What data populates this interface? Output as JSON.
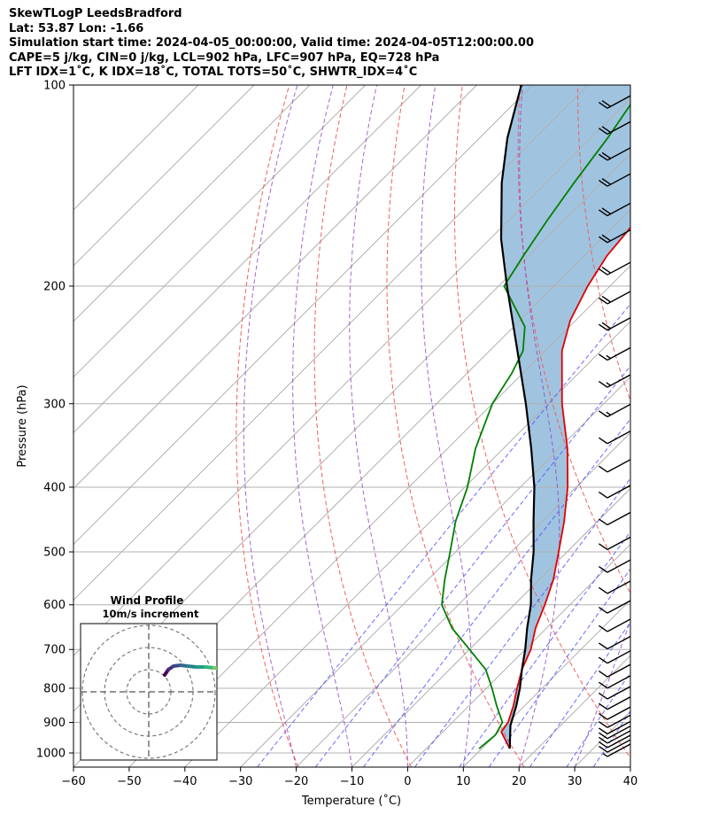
{
  "header": {
    "line1": "SkewTLogP LeedsBradford",
    "line2": "Lat: 53.87   Lon: -1.66",
    "line3": "Simulation start time: 2024-04-05_00:00:00, Valid time: 2024-04-05T12:00:00.00",
    "line4": "CAPE=5 j/kg, CIN=0 j/kg, LCL=902 hPa, LFC=907 hPa, EQ=728 hPa",
    "line5": "LFT IDX=1˚C, K IDX=18˚C, TOTAL TOTS=50˚C, SHWTR_IDX=4˚C"
  },
  "chart_data": {
    "type": "line",
    "chart_kind": "skew-T log-P",
    "xlabel": "Temperature (˚C)",
    "ylabel": "Pressure (hPa)",
    "xlim": [
      -60,
      40
    ],
    "ylim": [
      1050,
      100
    ],
    "y_scale": "log",
    "x_ticks": [
      -60,
      -50,
      -40,
      -30,
      -20,
      -10,
      0,
      10,
      20,
      30,
      40
    ],
    "y_ticks": [
      100,
      200,
      300,
      400,
      500,
      600,
      700,
      800,
      900,
      1000
    ],
    "skew_deg": 45,
    "grid": true,
    "series": [
      {
        "role": "temperature",
        "color": "#e00000",
        "points": [
          [
            15.0,
            985
          ],
          [
            10.5,
            930
          ],
          [
            10.0,
            900
          ],
          [
            8.0,
            850
          ],
          [
            5.5,
            800
          ],
          [
            3.0,
            750
          ],
          [
            1.0,
            700
          ],
          [
            -2.0,
            650
          ],
          [
            -4.5,
            600
          ],
          [
            -7.5,
            550
          ],
          [
            -11.5,
            500
          ],
          [
            -16.0,
            450
          ],
          [
            -21.5,
            400
          ],
          [
            -28.5,
            350
          ],
          [
            -37.5,
            300
          ],
          [
            -47.0,
            250
          ],
          [
            -51.0,
            225
          ],
          [
            -54.0,
            200
          ],
          [
            -56.0,
            180
          ],
          [
            -57.0,
            160
          ],
          [
            -58.5,
            140
          ],
          [
            -60.5,
            130
          ],
          [
            -63.0,
            120
          ],
          [
            -64.5,
            110
          ],
          [
            -66.0,
            100
          ]
        ]
      },
      {
        "role": "dewpoint",
        "color": "#008000",
        "points": [
          [
            9.5,
            985
          ],
          [
            10.0,
            940
          ],
          [
            9.0,
            900
          ],
          [
            5.0,
            850
          ],
          [
            1.0,
            800
          ],
          [
            -3.5,
            750
          ],
          [
            -10.0,
            700
          ],
          [
            -17.0,
            650
          ],
          [
            -23.0,
            600
          ],
          [
            -27.0,
            550
          ],
          [
            -31.0,
            500
          ],
          [
            -35.5,
            450
          ],
          [
            -39.5,
            400
          ],
          [
            -45.0,
            350
          ],
          [
            -50.0,
            300
          ],
          [
            -52.0,
            270
          ],
          [
            -54.0,
            250
          ],
          [
            -58.0,
            230
          ],
          [
            -69.0,
            200
          ],
          [
            -71.0,
            180
          ],
          [
            -73.0,
            160
          ],
          [
            -75.0,
            140
          ],
          [
            -77.0,
            120
          ],
          [
            -80.0,
            100
          ]
        ]
      },
      {
        "role": "parcel",
        "color": "#000000",
        "points": [
          [
            15.0,
            985
          ],
          [
            11.0,
            910
          ],
          [
            8.5,
            850
          ],
          [
            6.0,
            800
          ],
          [
            3.0,
            750
          ],
          [
            0.0,
            700
          ],
          [
            -3.5,
            650
          ],
          [
            -7.0,
            600
          ],
          [
            -11.5,
            550
          ],
          [
            -16.0,
            500
          ],
          [
            -21.5,
            450
          ],
          [
            -27.5,
            400
          ],
          [
            -35.0,
            350
          ],
          [
            -44.0,
            300
          ],
          [
            -55.0,
            250
          ],
          [
            -68.5,
            200
          ],
          [
            -78.0,
            170
          ],
          [
            -88.0,
            140
          ],
          [
            -95.0,
            120
          ],
          [
            -102.0,
            100
          ]
        ]
      }
    ],
    "dry_adiabat_theta_K": [
      250,
      270,
      290,
      310,
      330,
      350,
      370,
      390,
      410,
      430,
      450
    ],
    "moist_adiabat_start_C": [
      -20,
      -10,
      0,
      10,
      20,
      30
    ],
    "mixing_ratio_gkg": [
      0.4,
      1,
      2,
      4,
      7,
      10,
      16,
      24,
      32
    ],
    "isotherm_step_C": 10,
    "fill_color": "#a0c4e0",
    "wind_barbs": {
      "pressures": [
        1000,
        985,
        970,
        955,
        940,
        925,
        905,
        880,
        850,
        820,
        790,
        760,
        725,
        690,
        650,
        610,
        570,
        530,
        490,
        450,
        410,
        375,
        340,
        310,
        280,
        255,
        230,
        210,
        190,
        170,
        155,
        140,
        128,
        117,
        107
      ],
      "speed_ms": [
        8,
        10,
        10,
        12,
        12,
        12,
        12,
        12,
        14,
        14,
        14,
        14,
        14,
        14,
        14,
        14,
        14,
        14,
        14,
        14,
        14,
        14,
        14,
        16,
        16,
        18,
        20,
        22,
        22,
        22,
        22,
        22,
        22,
        22,
        22
      ]
    },
    "wind_profile_inset": {
      "title": "Wind Profile",
      "subtitle": "10m/s increment",
      "rings_ms": [
        10,
        20,
        30
      ]
    }
  }
}
